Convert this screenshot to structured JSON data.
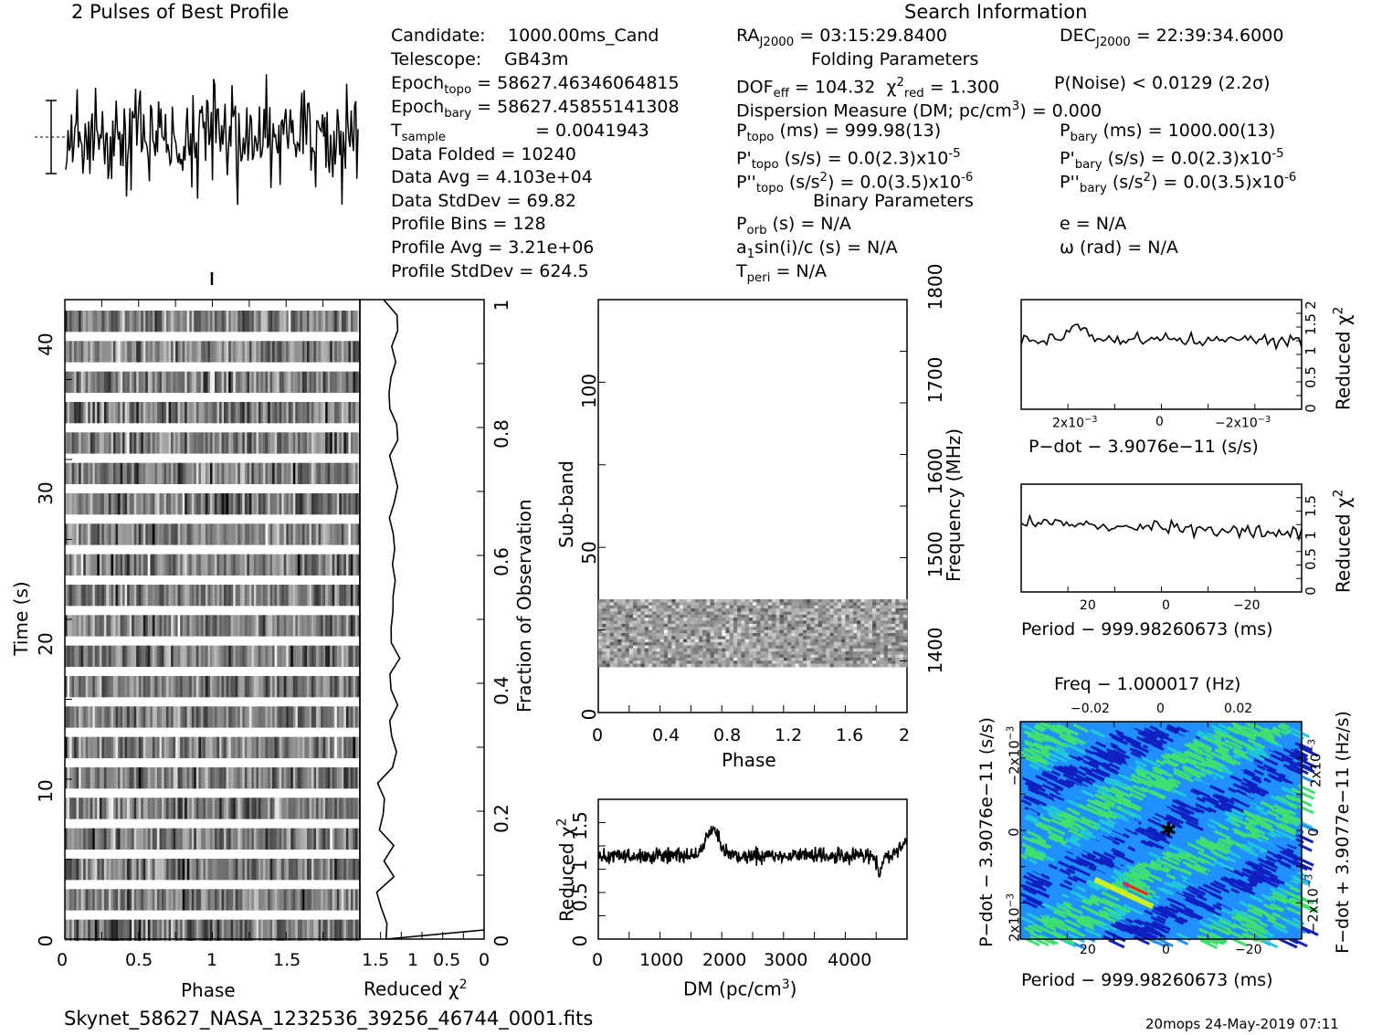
{
  "header": {
    "best_profile_title": "2 Pulses of Best Profile",
    "search_info_title": "Search Information",
    "folding_title": "Folding Parameters",
    "binary_title": "Binary Parameters"
  },
  "candidate_info": {
    "candidate_label": "Candidate:",
    "candidate_value": "1000.00ms_Cand",
    "telescope_label": "Telescope:",
    "telescope_value": "GB43m",
    "epoch_topo_label": "Epoch",
    "epoch_topo_sub": "topo",
    "epoch_topo_value": "= 58627.46346064815",
    "epoch_bary_label": "Epoch",
    "epoch_bary_sub": "bary",
    "epoch_bary_value": "= 58627.45855141308",
    "tsample_label": "T",
    "tsample_sub": "sample",
    "tsample_value": "=   0.0041943",
    "data_folded": "Data Folded    =   10240",
    "data_avg": "Data Avg       =   4.103e+04",
    "data_stddev": "Data StdDev    =   69.82",
    "profile_bins": "Profile Bins   =   128",
    "profile_avg": "Profile Avg    =   3.21e+06",
    "profile_stddev": "Profile StdDev =   624.5"
  },
  "search_info": {
    "ra_label": "RA",
    "ra_sub": "J2000",
    "ra_value": "= 03:15:29.8400",
    "dec_label": "DEC",
    "dec_sub": "J2000",
    "dec_value": "= 22:39:34.6000",
    "dof_label": "DOF",
    "dof_sub": "eff",
    "dof_value": "= 104.32",
    "chi_label": "χ",
    "chi_sup": "2",
    "chi_sub": "red",
    "chi_value": "= 1.300",
    "pnoise": "P(Noise) < 0.0129   (2.2σ)",
    "dm_line": "Dispersion Measure (DM; pc/cm",
    "dm_sup": "3",
    "dm_tail": ") = 0.000",
    "ptopo_label": "P",
    "ptopo_sub": "topo",
    "ptopo_value": " (ms) =  999.98(13)",
    "pbary_label": "P",
    "pbary_sub": "bary",
    "pbary_value": " (ms) =  1000.00(13)",
    "pdtopo_label": "P'",
    "pdtopo_sub": "topo",
    "pdtopo_value": " (s/s) = 0.0(2.3)x10",
    "pdtopo_exp": "-5",
    "pdbary_label": "P'",
    "pdbary_sub": "bary",
    "pdbary_value": " (s/s) = 0.0(2.3)x10",
    "pdbary_exp": "-5",
    "pddtopo_label": "P''",
    "pddtopo_sub": "topo",
    "pddtopo_value": " (s/s",
    "pddtopo_mid": ") = 0.0(3.5)x10",
    "pddtopo_exp": "-6",
    "pddbary_label": "P''",
    "pddbary_sub": "bary",
    "pddbary_value": " (s/s",
    "pddbary_mid": ") = 0.0(3.5)x10",
    "pddbary_exp": "-6",
    "sq": "2",
    "porb_label": "P",
    "porb_sub": "orb",
    "porb_value": " (s) = N/A",
    "e_value": "e = N/A",
    "a1_label": "a",
    "a1_sub": "1",
    "a1_value": "sin(i)/c (s) = N/A",
    "omega_value": "ω (rad) = N/A",
    "tperi_label": "T",
    "tperi_sub": "peri",
    "tperi_value": " = N/A"
  },
  "footer": {
    "filename": "Skynet_58627_NASA_1232536_39256_46744_0001.fits",
    "stamp": "20mops 24-May-2019 07:11"
  },
  "chart_data": [
    {
      "type": "line",
      "name": "best-profile",
      "title": "2 Pulses of Best Profile",
      "x_range": [
        0,
        2
      ],
      "note_values": "profile intensity, arbitrary units, noise-like"
    },
    {
      "type": "heatmap",
      "name": "time-phase",
      "xlabel": "Phase",
      "ylabel": "Time (s)",
      "xlim": [
        0,
        2
      ],
      "ylim": [
        0,
        43
      ],
      "x_ticks": [
        "0",
        "0.5",
        "1",
        "1.5"
      ],
      "y_ticks": [
        "0",
        "10",
        "20",
        "30",
        "40"
      ]
    },
    {
      "type": "line",
      "name": "time-reduced-chi2",
      "xlabel": "Reduced χ",
      "xlabel_sup": "2",
      "x_ticks": [
        "1.5",
        "1",
        "0.5",
        "0"
      ],
      "right_axis_label": "Fraction of Observation",
      "right_ticks": [
        "0",
        "0.2",
        "0.4",
        "0.6",
        "0.8",
        "1"
      ]
    },
    {
      "type": "heatmap",
      "name": "subband-phase",
      "xlabel": "Phase",
      "ylabel": "Sub-band",
      "right_label": "Frequency (MHz)",
      "xlim": [
        0,
        2
      ],
      "ylim": [
        0,
        128
      ],
      "x_ticks": [
        "0",
        "0.4",
        "0.8",
        "1.2",
        "1.6",
        "2"
      ],
      "y_ticks": [
        "0",
        "50",
        "100"
      ],
      "freq_ticks": [
        "1400",
        "1500",
        "1600",
        "1700",
        "1800"
      ],
      "data_band": [
        15,
        35
      ]
    },
    {
      "type": "line",
      "name": "dm-chi2",
      "xlabel": "DM (pc/cm",
      "xlabel_sup": "3",
      "xlabel_tail": ")",
      "ylabel": "Reduced χ",
      "ylabel_sup": "2",
      "xlim": [
        0,
        4900
      ],
      "ylim": [
        0,
        1.8
      ],
      "x_ticks": [
        "0",
        "1000",
        "2000",
        "3000",
        "4000"
      ],
      "y_ticks": [
        "0",
        "0.5",
        "1",
        "1.5"
      ]
    },
    {
      "type": "line",
      "name": "pdot-chi2",
      "xlabel": "P−dot − 3.9076e−11 (s/s)",
      "ylabel": "Reduced χ",
      "ylabel_sup": "2",
      "ylim": [
        0,
        2
      ],
      "x_ticks": [
        "2x10",
        "0",
        "−2x10"
      ],
      "x_tick_exp": "−3",
      "y_ticks": [
        "0",
        "0.5",
        "1",
        "1.5",
        "2"
      ]
    },
    {
      "type": "line",
      "name": "period-chi2",
      "xlabel": "Period − 999.98260673 (ms)",
      "ylabel": "Reduced χ",
      "ylabel_sup": "2",
      "ylim": [
        0,
        1.8
      ],
      "x_ticks": [
        "20",
        "0",
        "−20"
      ],
      "y_ticks": [
        "0",
        "0.5",
        "1",
        "1.5"
      ]
    },
    {
      "type": "heatmap",
      "name": "period-pdot",
      "title": "Freq − 1.000017 (Hz)",
      "xlabel": "Period − 999.98260673 (ms)",
      "ylabel": "P−dot − 3.9076e−11 (s/s)",
      "right_label": "F−dot + 3.9077e−11 (Hz/s)",
      "x_ticks": [
        "20",
        "0",
        "−20"
      ],
      "top_ticks": [
        "−0.02",
        "0",
        "0.02"
      ],
      "y_ticks": [
        "2x10",
        "0",
        "−2x10"
      ],
      "y_tick_exp": "−3",
      "right_ticks": [
        "−2x10",
        "0",
        "2x10"
      ],
      "right_tick_exp": "−3",
      "colors": [
        "#1020c0",
        "#2090ff",
        "#20c8d8",
        "#40e070",
        "#c8f020",
        "#ff2020"
      ]
    }
  ]
}
